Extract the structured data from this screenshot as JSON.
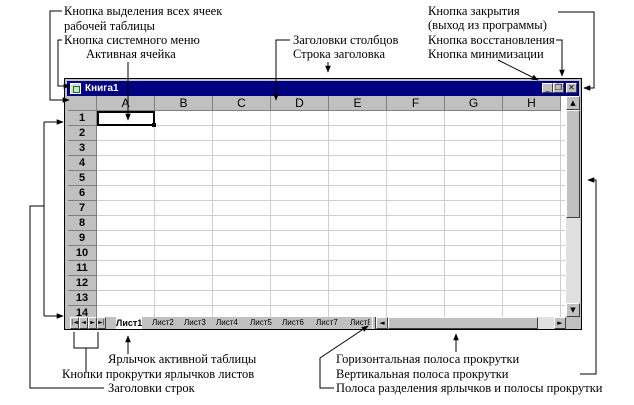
{
  "window": {
    "title": "Книга1",
    "buttons": {
      "minimize": "_",
      "restore": "❐",
      "close": "✕"
    }
  },
  "sheet": {
    "columns": [
      "A",
      "B",
      "C",
      "D",
      "E",
      "F",
      "G",
      "H"
    ],
    "rows": [
      "1",
      "2",
      "3",
      "4",
      "5",
      "6",
      "7",
      "8",
      "9",
      "10",
      "11",
      "12",
      "13",
      "14"
    ],
    "active_cell": "A1"
  },
  "tabs": [
    "Лист1",
    "Лист2",
    "Лист3",
    "Лист4",
    "Лист5",
    "Лист6",
    "Лист7",
    "Лист8"
  ],
  "tab_nav": [
    "|◄",
    "◄",
    "►",
    "►|"
  ],
  "scroll_arrows": {
    "up": "▲",
    "down": "▼",
    "left": "◄",
    "right": "►"
  },
  "annotations": {
    "select_all_line1": "Кнопка выделения всех ячеек",
    "select_all_line2": "рабочей таблицы",
    "system_menu": "Кнопка системного меню",
    "active_cell": "Активная ячейка",
    "col_headers": "Заголовки столбцов",
    "title_bar": "Строка заголовка",
    "close_line1": "Кнопка закрытия",
    "close_line2": "(выход из программы)",
    "restore": "Кнопка восстановления",
    "minimize": "Кнопка минимизации",
    "active_tab": "Ярлычок активной таблицы",
    "tab_scroll": "Кнопки прокрутки ярлычков листов",
    "row_headers": "Заголовки строк",
    "hscroll": "Горизонтальная полоса прокрутки",
    "vscroll": "Вертикальная полоса прокрутки",
    "split": "Полоса разделения ярлычков и полосы прокрутки"
  }
}
